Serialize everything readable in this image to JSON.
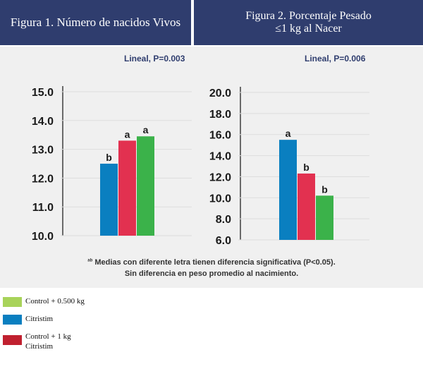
{
  "header": {
    "fig1_title": "Figura 1. Número de nacidos Vivos",
    "fig2_title_line1": "Figura 2. Porcentaje Pesado",
    "fig2_title_line2": "≤1 kg al Nacer"
  },
  "colors": {
    "blue": "#0a7fc0",
    "red": "#e23150",
    "green": "#3bb24a",
    "legend_green": "#a8d35a",
    "legend_red": "#c0202f",
    "header_bg": "#2f3d6e"
  },
  "chart_data": [
    {
      "type": "bar",
      "title": "Figura 1. Número de nacidos Vivos",
      "annotation": "Lineal, P=0.003",
      "ylim": [
        10.0,
        15.0
      ],
      "yticks": [
        "15.0",
        "14.0",
        "13.0",
        "12.0",
        "11.0",
        "10.0"
      ],
      "categories": [
        "Citristim",
        "Control + 1 kg Citristim",
        "Control + 0.500 kg"
      ],
      "values": [
        12.5,
        13.3,
        13.45
      ],
      "bar_labels": [
        "b",
        "a",
        "a"
      ],
      "bar_colors": [
        "#0a7fc0",
        "#e23150",
        "#3bb24a"
      ]
    },
    {
      "type": "bar",
      "title": "Figura 2. Porcentaje Pesado ≤1 kg al Nacer",
      "annotation": "Lineal, P=0.006",
      "ylim": [
        6.0,
        20.0
      ],
      "yticks": [
        "20.0",
        "18.0",
        "16.0",
        "14.0",
        "12.0",
        "10.0",
        "8.0",
        "6.0"
      ],
      "categories": [
        "Citristim",
        "Control + 1 kg Citristim",
        "Control + 0.500 kg"
      ],
      "values": [
        15.5,
        12.3,
        10.2
      ],
      "bar_labels": [
        "a",
        "b",
        "b"
      ],
      "bar_colors": [
        "#0a7fc0",
        "#e23150",
        "#3bb24a"
      ]
    }
  ],
  "footnote": {
    "prefix": "ab",
    "line1": "Medias con diferente letra tienen diferencia significativa (P<0.05).",
    "line2": "Sin diferencia en peso promedio al nacimiento."
  },
  "legend": [
    {
      "label": "Control + 0.500 kg",
      "color": "#a8d35a"
    },
    {
      "label": "Citristim",
      "color": "#0a7fc0"
    },
    {
      "label": "Control + 1 kg",
      "label2": "Citristim",
      "color": "#c0202f"
    }
  ]
}
